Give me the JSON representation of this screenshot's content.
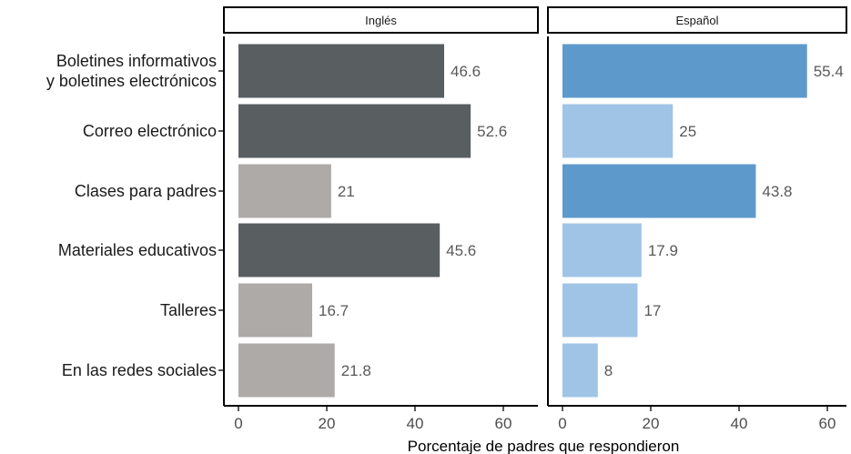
{
  "chart_data": {
    "type": "bar",
    "orientation": "horizontal",
    "xlabel": "Porcentaje de padres que respondieron",
    "xlim": [
      0,
      65
    ],
    "xticks": [
      0,
      20,
      40,
      60
    ],
    "categories": [
      [
        "Boletines informativos",
        "y boletines electrónicos"
      ],
      [
        "Correo electrónico"
      ],
      [
        "Clases para padres"
      ],
      [
        "Materiales educativos"
      ],
      [
        "Talleres"
      ],
      [
        "En las redes sociales"
      ]
    ],
    "colors": {
      "ingles_high": "#595e61",
      "ingles_low": "#aeaaa8",
      "espanol_high": "#5e99cb",
      "espanol_low": "#9fc4e6",
      "label_text": "#595959"
    },
    "panels": [
      {
        "name": "Inglés",
        "values": [
          46.6,
          52.6,
          21,
          45.6,
          16.7,
          21.8
        ],
        "labels": [
          "46.6",
          "52.6",
          "21",
          "45.6",
          "16.7",
          "21.8"
        ],
        "highlight": [
          true,
          true,
          false,
          true,
          false,
          false
        ]
      },
      {
        "name": "Español",
        "values": [
          55.4,
          25,
          43.8,
          17.9,
          17,
          8
        ],
        "labels": [
          "55.4",
          "25",
          "43.8",
          "17.9",
          "17",
          "8"
        ],
        "highlight": [
          true,
          false,
          true,
          false,
          false,
          false
        ]
      }
    ]
  }
}
